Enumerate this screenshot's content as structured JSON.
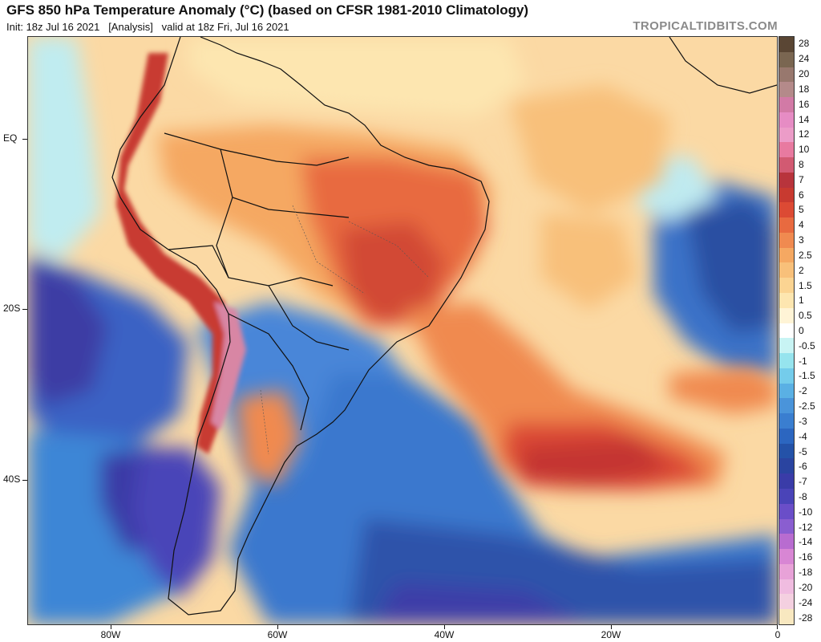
{
  "header": {
    "title": "GFS 850 hPa Temperature Anomaly (°C) (based on CFSR 1981-2010 Climatology)",
    "subtitle": "Init: 18z Jul 16 2021   [Analysis]   valid at 18z Fri, Jul 16 2021",
    "brand": "TROPICALTIDBITS.COM"
  },
  "map": {
    "projection": "equirectangular",
    "lon_range": [
      -90,
      0
    ],
    "lat_range": [
      12,
      -57
    ],
    "lat_labels": [
      {
        "text": "EQ",
        "lat": 0
      },
      {
        "text": "20S",
        "lat": -20
      },
      {
        "text": "40S",
        "lat": -40
      }
    ],
    "lon_labels": [
      {
        "text": "80W",
        "lon": -80
      },
      {
        "text": "60W",
        "lon": -60
      },
      {
        "text": "40W",
        "lon": -40
      },
      {
        "text": "20W",
        "lon": -20
      },
      {
        "text": "0",
        "lon": 0
      }
    ],
    "anomaly_regions": [
      {
        "name": "brazil-warm-anomaly",
        "level": 4
      },
      {
        "name": "south-atlantic-warm-plume",
        "level": 3
      },
      {
        "name": "south-atlantic-warm-core",
        "level": 6
      },
      {
        "name": "andes-warm-anomaly",
        "level": 5
      },
      {
        "name": "pacific-cold-anomaly",
        "level": -7
      },
      {
        "name": "southern-ocean-cold-anomaly",
        "level": -6
      },
      {
        "name": "atlantic-cold-anomaly",
        "level": -5
      },
      {
        "name": "patagonia-cold-anomaly",
        "level": -8
      }
    ]
  },
  "colorbar": {
    "levels": [
      {
        "label": "28",
        "color": "#5a4634"
      },
      {
        "label": "24",
        "color": "#7a6651"
      },
      {
        "label": "20",
        "color": "#98786e"
      },
      {
        "label": "18",
        "color": "#b48a8a"
      },
      {
        "label": "16",
        "color": "#d27aa6"
      },
      {
        "label": "14",
        "color": "#e68cc4"
      },
      {
        "label": "12",
        "color": "#ec9cc8"
      },
      {
        "label": "10",
        "color": "#e87aa0"
      },
      {
        "label": "8",
        "color": "#d25a72"
      },
      {
        "label": "7",
        "color": "#b8343c"
      },
      {
        "label": "6",
        "color": "#c83a30"
      },
      {
        "label": "5",
        "color": "#dc4a34"
      },
      {
        "label": "4",
        "color": "#e86a40"
      },
      {
        "label": "3",
        "color": "#f08a50"
      },
      {
        "label": "2.5",
        "color": "#f5a862"
      },
      {
        "label": "2",
        "color": "#f8c07a"
      },
      {
        "label": "1.5",
        "color": "#fbd492"
      },
      {
        "label": "1",
        "color": "#fde6b0"
      },
      {
        "label": "0.5",
        "color": "#fff4d6"
      },
      {
        "label": "0",
        "color": "#ffffff"
      },
      {
        "label": "-0.5",
        "color": "#c8f4f4"
      },
      {
        "label": "-1",
        "color": "#96e4ee"
      },
      {
        "label": "-1.5",
        "color": "#74cceb"
      },
      {
        "label": "-2",
        "color": "#5ab0e4"
      },
      {
        "label": "-2.5",
        "color": "#4a94da"
      },
      {
        "label": "-3",
        "color": "#3a7ed0"
      },
      {
        "label": "-4",
        "color": "#2c66c0"
      },
      {
        "label": "-5",
        "color": "#2452a8"
      },
      {
        "label": "-6",
        "color": "#2a44a0"
      },
      {
        "label": "-7",
        "color": "#3a3ca8"
      },
      {
        "label": "-8",
        "color": "#4a44b8"
      },
      {
        "label": "-10",
        "color": "#6a4ec8"
      },
      {
        "label": "-12",
        "color": "#8a5ed0"
      },
      {
        "label": "-14",
        "color": "#b86cd0"
      },
      {
        "label": "-16",
        "color": "#d886d4"
      },
      {
        "label": "-18",
        "color": "#e8a2d8"
      },
      {
        "label": "-20",
        "color": "#f0bce0"
      },
      {
        "label": "-24",
        "color": "#f4d0e0"
      },
      {
        "label": "-28",
        "color": "#f8e8c0"
      }
    ]
  }
}
